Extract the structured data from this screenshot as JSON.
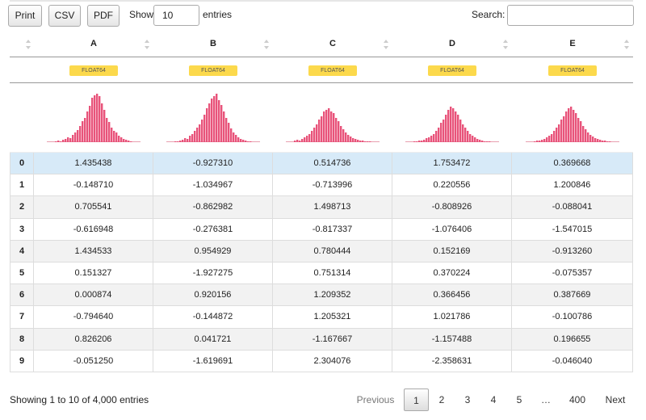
{
  "toolbar": {
    "buttons": [
      "Print",
      "CSV",
      "PDF"
    ],
    "show_label": "Show",
    "page_length": "10",
    "entries_label": "entries",
    "search_label": "Search:"
  },
  "table": {
    "columns": [
      "A",
      "B",
      "C",
      "D",
      "E"
    ],
    "dtypes": [
      "FLOAT64",
      "FLOAT64",
      "FLOAT64",
      "FLOAT64",
      "FLOAT64"
    ],
    "histograms": [
      [
        1,
        2,
        1,
        3,
        4,
        6,
        5,
        9,
        12,
        15,
        20,
        26,
        30,
        38,
        45,
        55,
        58,
        60,
        57,
        48,
        40,
        30,
        25,
        18,
        14,
        12,
        8,
        6,
        4,
        3,
        2,
        1
      ],
      [
        1,
        1,
        2,
        3,
        5,
        4,
        8,
        10,
        14,
        18,
        22,
        28,
        34,
        42,
        48,
        54,
        57,
        60,
        52,
        46,
        38,
        30,
        24,
        17,
        12,
        9,
        6,
        4,
        3,
        2,
        1,
        1
      ],
      [
        2,
        3,
        2,
        4,
        6,
        8,
        10,
        14,
        18,
        22,
        28,
        32,
        38,
        40,
        42,
        38,
        36,
        30,
        26,
        20,
        16,
        12,
        9,
        7,
        5,
        4,
        3,
        2,
        2,
        1,
        1,
        1
      ],
      [
        1,
        1,
        2,
        2,
        3,
        5,
        6,
        8,
        10,
        14,
        18,
        24,
        28,
        34,
        40,
        44,
        42,
        38,
        34,
        28,
        22,
        18,
        14,
        10,
        8,
        6,
        4,
        3,
        2,
        1,
        1,
        1
      ],
      [
        1,
        2,
        2,
        3,
        4,
        6,
        8,
        10,
        14,
        18,
        22,
        28,
        32,
        38,
        42,
        44,
        40,
        36,
        30,
        26,
        20,
        16,
        12,
        9,
        7,
        5,
        4,
        3,
        2,
        2,
        1,
        1
      ]
    ],
    "rows": [
      [
        "0",
        "1.435438",
        "-0.927310",
        "0.514736",
        "1.753472",
        "0.369668"
      ],
      [
        "1",
        "-0.148710",
        "-1.034967",
        "-0.713996",
        "0.220556",
        "1.200846"
      ],
      [
        "2",
        "0.705541",
        "-0.862982",
        "1.498713",
        "-0.808926",
        "-0.088041"
      ],
      [
        "3",
        "-0.616948",
        "-0.276381",
        "-0.817337",
        "-1.076406",
        "-1.547015"
      ],
      [
        "4",
        "1.434533",
        "0.954929",
        "0.780444",
        "0.152169",
        "-0.913260"
      ],
      [
        "5",
        "0.151327",
        "-1.927275",
        "0.751314",
        "0.370224",
        "-0.075357"
      ],
      [
        "6",
        "0.000874",
        "0.920156",
        "1.209352",
        "0.366456",
        "0.387669"
      ],
      [
        "7",
        "-0.794640",
        "-0.144872",
        "1.205321",
        "1.021786",
        "-0.100786"
      ],
      [
        "8",
        "0.826206",
        "0.041721",
        "-1.167667",
        "-1.157488",
        "0.196655"
      ],
      [
        "9",
        "-0.051250",
        "-1.619691",
        "2.304076",
        "-2.358631",
        "-0.046040"
      ]
    ]
  },
  "footer": {
    "info": "Showing 1 to 10 of 4,000 entries",
    "pagination": [
      "Previous",
      "1",
      "2",
      "3",
      "4",
      "5",
      "…",
      "400",
      "Next"
    ]
  }
}
